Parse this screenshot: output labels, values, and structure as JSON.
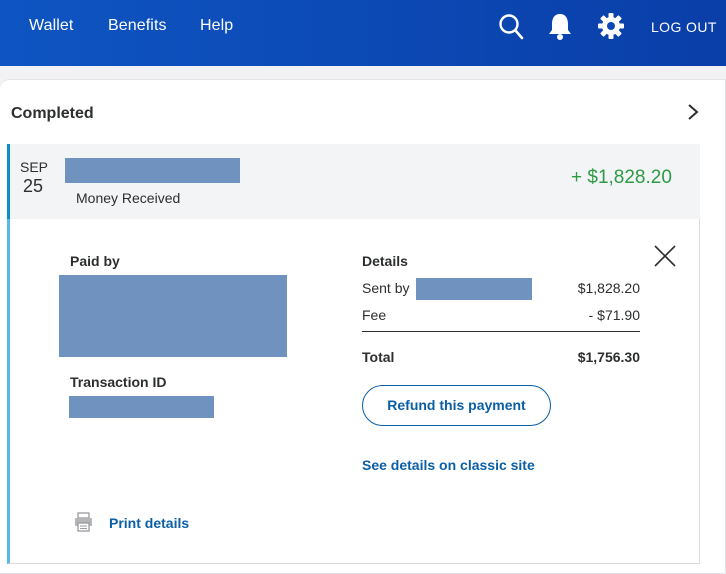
{
  "nav": {
    "items": [
      {
        "label": "Wallet"
      },
      {
        "label": "Benefits"
      },
      {
        "label": "Help"
      }
    ],
    "logout_label": "LOG OUT"
  },
  "icons": {
    "search": "search-icon",
    "bell": "bell-icon",
    "settings": "gear-icon",
    "close": "close-icon",
    "chevron": "chevron-right-icon",
    "print": "printer-icon"
  },
  "section": {
    "title": "Completed"
  },
  "transaction": {
    "month": "SEP",
    "day": "25",
    "type_label": "Money Received",
    "amount": "+ $1,828.20"
  },
  "details": {
    "paid_by_label": "Paid by",
    "transaction_id_label": "Transaction ID",
    "details_label": "Details",
    "sent_by_label": "Sent by",
    "sent_by_amount": "$1,828.20",
    "fee_label": "Fee",
    "fee_amount": "- $71.90",
    "total_label": "Total",
    "total_amount": "$1,756.30",
    "refund_button": "Refund this payment",
    "classic_link": "See details on classic site",
    "print_link": "Print details"
  },
  "colors": {
    "header": "#0e55c2",
    "positive_amount": "#2e9a45",
    "link": "#0b5fa5",
    "redaction": "#7092bf"
  }
}
